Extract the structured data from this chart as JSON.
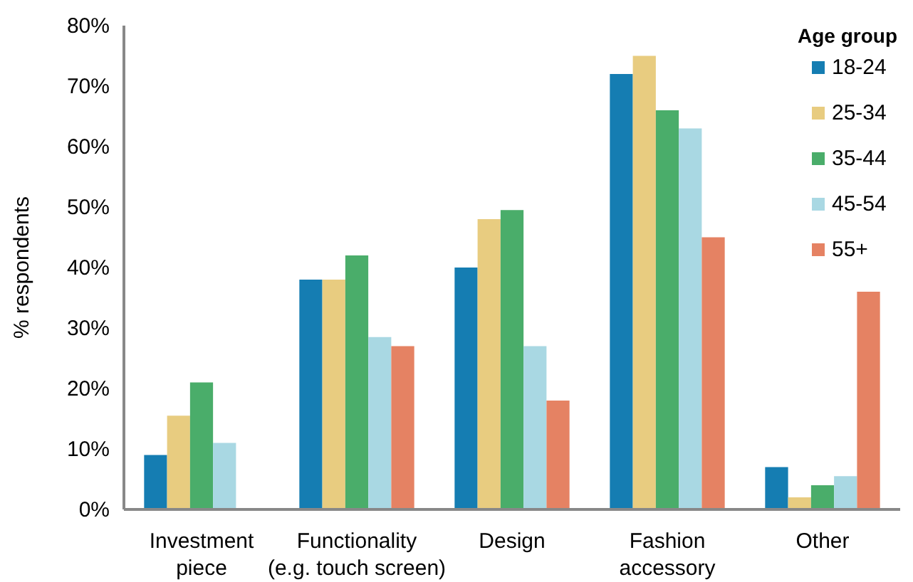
{
  "chart_data": {
    "type": "bar",
    "ylabel": "% respondents",
    "legend_title": "Age group",
    "legend": "top right",
    "grid": false,
    "categories": [
      "Investment piece",
      "Functionality (e.g. touch screen)",
      "Design",
      "Fashion accessory",
      "Other"
    ],
    "ylim": [
      0,
      80
    ],
    "yticks": [
      {
        "value": 0,
        "label": "0%"
      },
      {
        "value": 10,
        "label": "10%"
      },
      {
        "value": 20,
        "label": "20%"
      },
      {
        "value": 30,
        "label": "30%"
      },
      {
        "value": 40,
        "label": "40%"
      },
      {
        "value": 50,
        "label": "50%"
      },
      {
        "value": 60,
        "label": "60%"
      },
      {
        "value": 70,
        "label": "70%"
      },
      {
        "value": 80,
        "label": "80%"
      }
    ],
    "series": [
      {
        "name": "18-24",
        "color": "#157db2",
        "values": [
          9,
          38,
          40,
          72,
          7
        ]
      },
      {
        "name": "25-34",
        "color": "#e8cc80",
        "values": [
          15.5,
          38,
          48,
          75,
          2
        ]
      },
      {
        "name": "35-44",
        "color": "#4aad6a",
        "values": [
          21,
          42,
          49.5,
          66,
          4
        ]
      },
      {
        "name": "45-54",
        "color": "#a9d8e3",
        "values": [
          11,
          28.5,
          27,
          63,
          5.5
        ]
      },
      {
        "name": "55+",
        "color": "#e58263",
        "values": [
          0,
          27,
          18,
          45,
          36
        ]
      }
    ]
  }
}
